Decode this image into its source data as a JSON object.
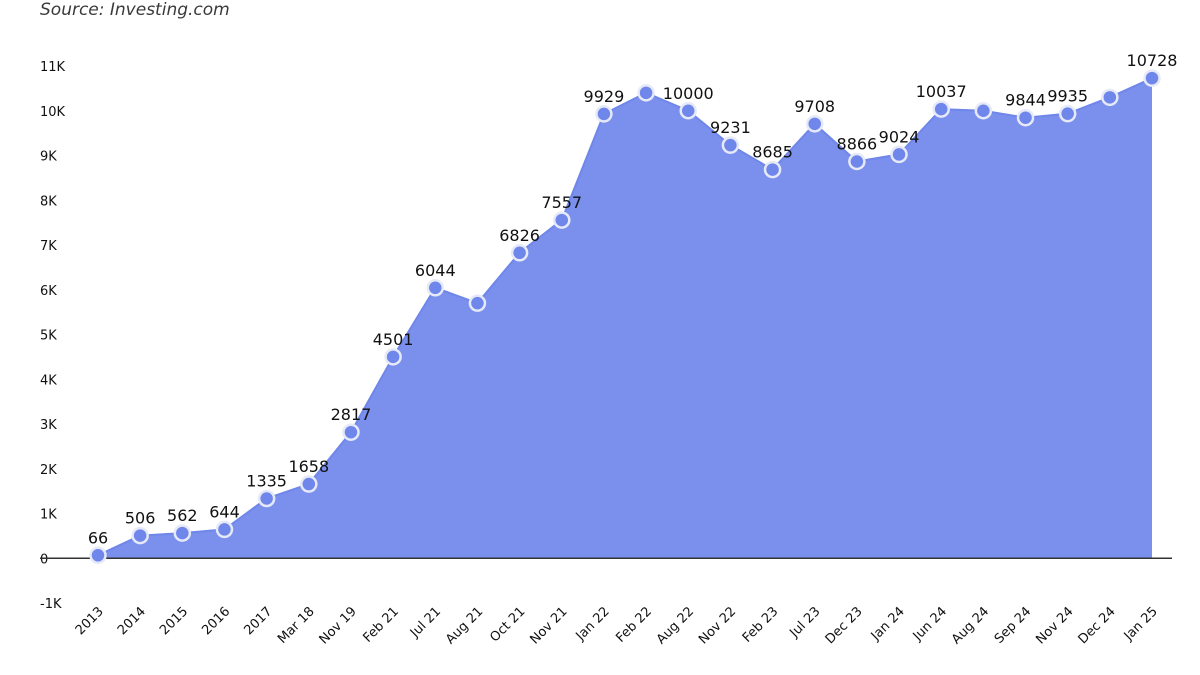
{
  "source": "Source: Investing.com",
  "chart_data": {
    "type": "area",
    "ylim": [
      -1000,
      11000
    ],
    "yticks": [
      {
        "value": -1000,
        "label": "-1K"
      },
      {
        "value": 0,
        "label": "0"
      },
      {
        "value": 1000,
        "label": "1K"
      },
      {
        "value": 2000,
        "label": "2K"
      },
      {
        "value": 3000,
        "label": "3K"
      },
      {
        "value": 4000,
        "label": "4K"
      },
      {
        "value": 5000,
        "label": "5K"
      },
      {
        "value": 6000,
        "label": "6K"
      },
      {
        "value": 7000,
        "label": "7K"
      },
      {
        "value": 8000,
        "label": "8K"
      },
      {
        "value": 9000,
        "label": "9K"
      },
      {
        "value": 10000,
        "label": "10K"
      },
      {
        "value": 11000,
        "label": "11K"
      }
    ],
    "categories": [
      "2013",
      "2014",
      "2015",
      "2016",
      "2017",
      "Mar 18",
      "Nov 19",
      "Feb 21",
      "Jul 21",
      "Aug 21",
      "Oct 21",
      "Nov 21",
      "Jan 22",
      "Feb 22",
      "Aug 22",
      "Nov 22",
      "Feb 23",
      "Jul 23",
      "Dec 23",
      "Jan 24",
      "Jun 24",
      "Aug 24",
      "Sep 24",
      "Nov 24",
      "Dec 24",
      "Jan 25"
    ],
    "values": [
      66,
      506,
      562,
      644,
      1335,
      1658,
      2817,
      4501,
      6044,
      5700,
      6826,
      7557,
      9929,
      10400,
      10000,
      9231,
      8685,
      9708,
      8866,
      9024,
      10037,
      10000,
      9844,
      9935,
      10300,
      10728
    ],
    "data_labels": [
      "66",
      "506",
      "562",
      "644",
      "1335",
      "1658",
      "2817",
      "4501",
      "6044",
      "",
      "6826",
      "7557",
      "9929",
      "",
      "10000",
      "9231",
      "8685",
      "9708",
      "8866",
      "9024",
      "10037",
      "",
      "9844",
      "9935",
      "",
      "10728"
    ],
    "grid": false,
    "colors": {
      "area": "#7a90ec",
      "marker": "#6f86ea",
      "marker_stroke": "#e6e9f7",
      "axis": "#333333"
    }
  }
}
